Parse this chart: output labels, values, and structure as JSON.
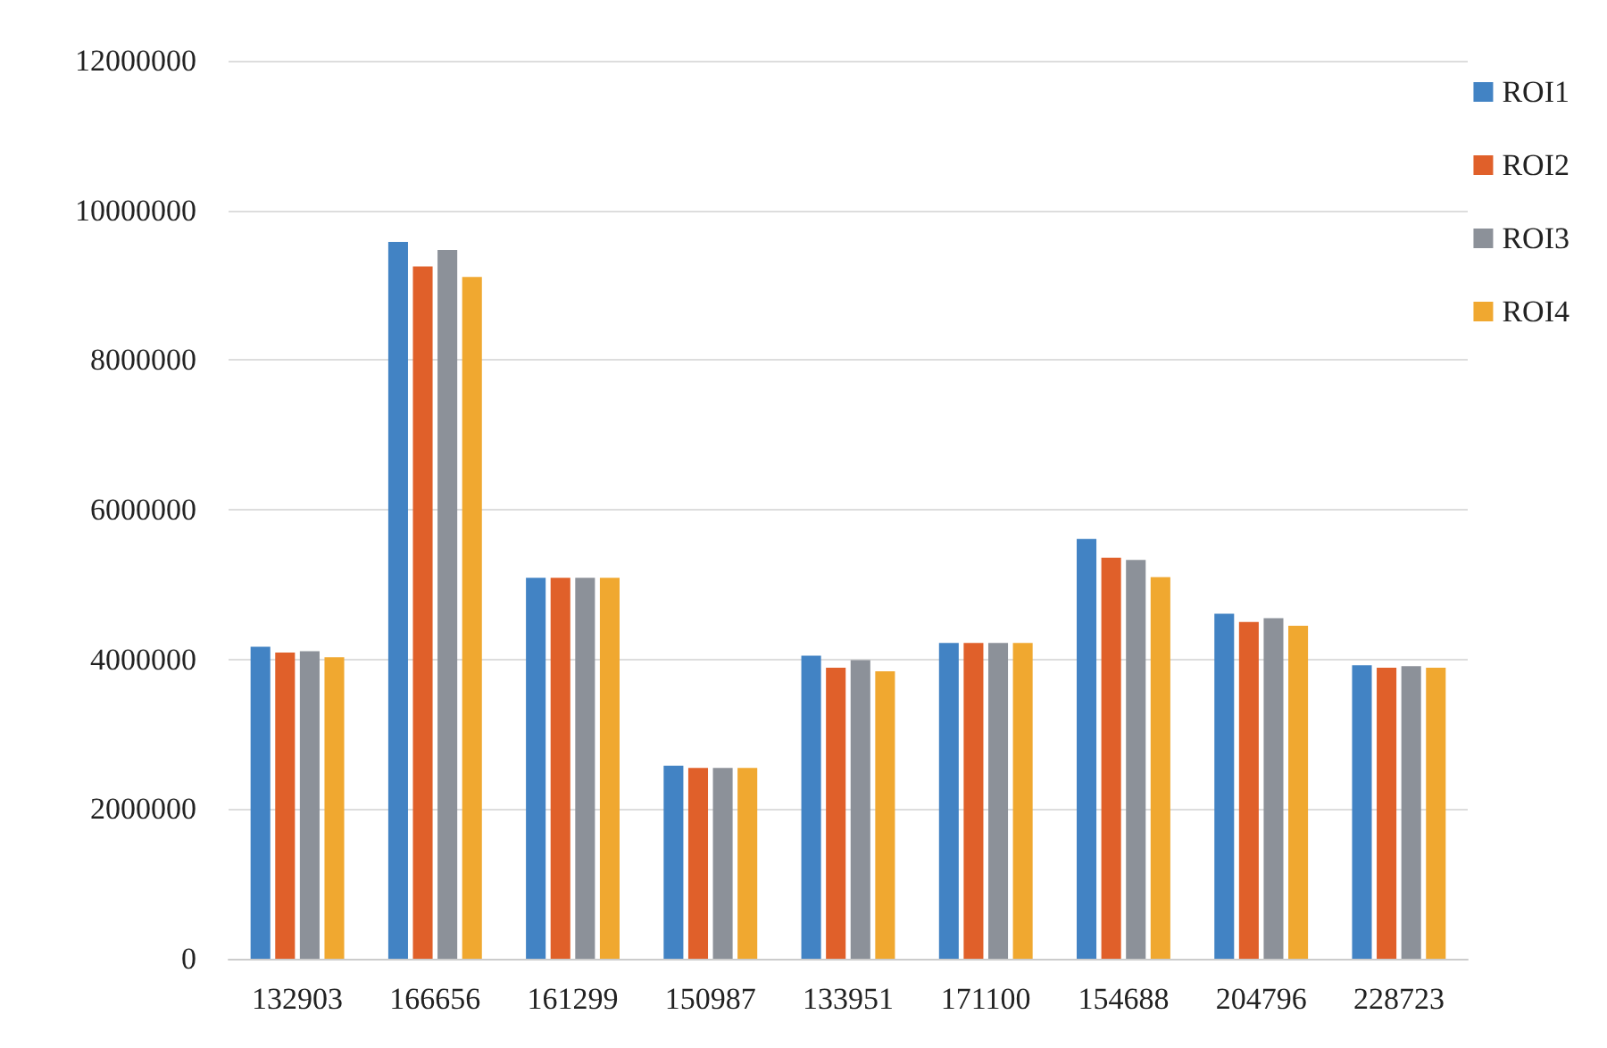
{
  "chart_data": {
    "type": "bar",
    "categories": [
      "132903",
      "166656",
      "161299",
      "150987",
      "133951",
      "171100",
      "154688",
      "204796",
      "228723"
    ],
    "series": [
      {
        "name": "ROI1",
        "color": "#4283c4",
        "values": [
          4170000,
          9580000,
          5090000,
          2580000,
          4050000,
          4220000,
          5610000,
          4610000,
          3920000
        ]
      },
      {
        "name": "ROI2",
        "color": "#e0602a",
        "values": [
          4090000,
          9250000,
          5090000,
          2550000,
          3890000,
          4220000,
          5360000,
          4500000,
          3890000
        ]
      },
      {
        "name": "ROI3",
        "color": "#8c9199",
        "values": [
          4110000,
          9470000,
          5090000,
          2550000,
          3990000,
          4220000,
          5330000,
          4550000,
          3910000
        ]
      },
      {
        "name": "ROI4",
        "color": "#f0a830",
        "values": [
          4030000,
          9110000,
          5090000,
          2550000,
          3840000,
          4220000,
          5100000,
          4450000,
          3890000
        ]
      }
    ],
    "ylim": [
      0,
      12000000
    ],
    "yticks": [
      0,
      2000000,
      4000000,
      6000000,
      8000000,
      10000000,
      12000000
    ],
    "grid": "y",
    "legend": "top right"
  }
}
